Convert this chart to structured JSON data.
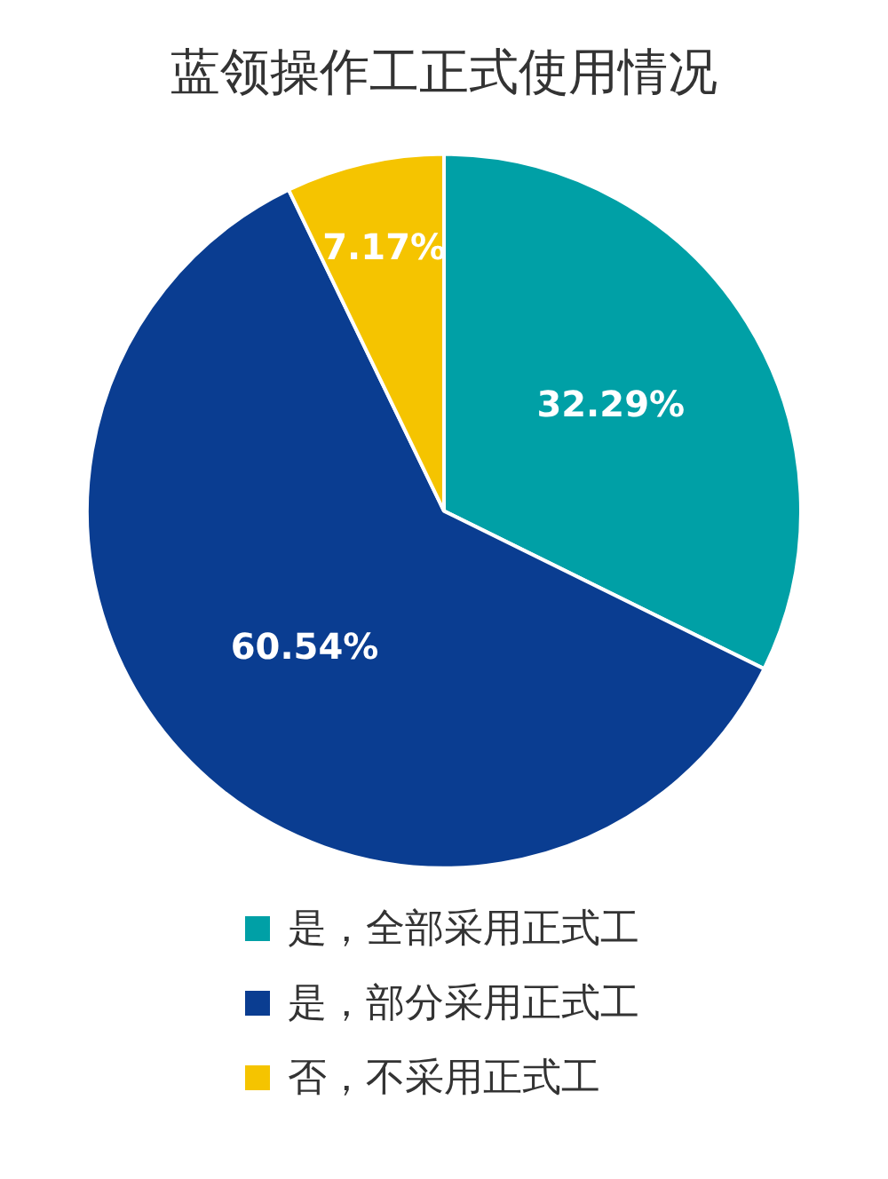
{
  "chart_data": {
    "type": "pie",
    "title": "蓝领操作工正式使用情况",
    "categories": [
      "是，全部采用正式工",
      "是，部分采用正式工",
      "否，不采用正式工"
    ],
    "values": [
      32.29,
      60.54,
      7.17
    ],
    "colors": [
      "#00a0a6",
      "#0a3d91",
      "#f5c400"
    ],
    "value_labels": [
      "32.29%",
      "60.54%",
      "7.17%"
    ],
    "legend": "bottom"
  }
}
